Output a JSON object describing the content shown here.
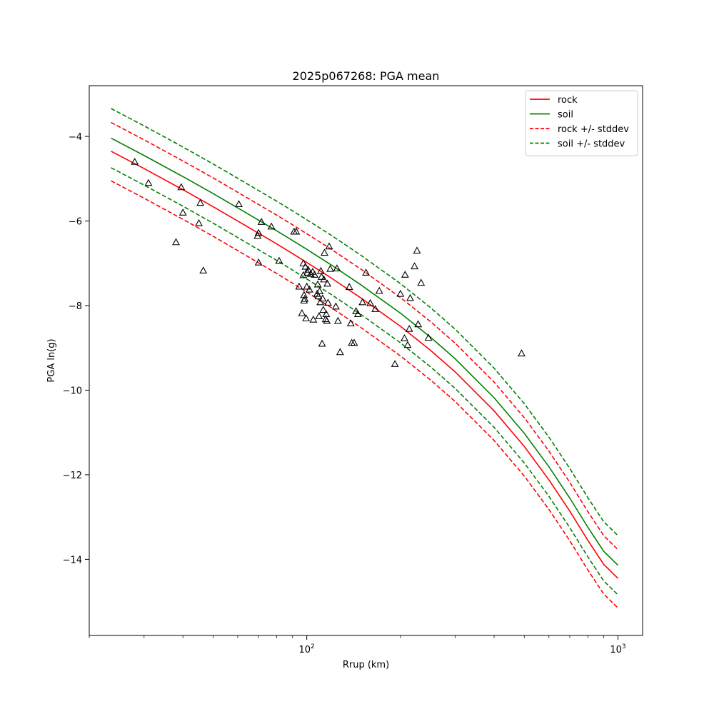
{
  "chart_data": {
    "type": "line",
    "title": "2025p067268: PGA mean",
    "xlabel": "Rrup (km)",
    "ylabel": "PGA ln(g)",
    "xscale": "log",
    "xlim": [
      20,
      1200
    ],
    "ylim": [
      -15.8,
      -2.8
    ],
    "x_ticks": [
      {
        "value": 100,
        "base": "10",
        "exp": "2"
      },
      {
        "value": 1000,
        "base": "10",
        "exp": "3"
      }
    ],
    "y_ticks": [
      -4,
      -6,
      -8,
      -10,
      -12,
      -14
    ],
    "y_tick_labels": [
      "−4",
      "−6",
      "−8",
      "−10",
      "−12",
      "−14"
    ],
    "legend_position": "top-right",
    "x": [
      23.5,
      30,
      40,
      50,
      60,
      70,
      80,
      90,
      100,
      120,
      150,
      200,
      250,
      300,
      400,
      500,
      600,
      700,
      800,
      900,
      1000
    ],
    "series": [
      {
        "name": "rock",
        "color": "#ff0000",
        "style": "solid",
        "values": [
          -4.35,
          -4.76,
          -5.26,
          -5.66,
          -6.0,
          -6.29,
          -6.54,
          -6.77,
          -6.98,
          -7.35,
          -7.83,
          -8.49,
          -9.06,
          -9.57,
          -10.49,
          -11.33,
          -12.12,
          -12.86,
          -13.55,
          -14.12,
          -14.45
        ]
      },
      {
        "name": "soil",
        "color": "#008000",
        "style": "solid",
        "values": [
          -4.04,
          -4.45,
          -4.95,
          -5.35,
          -5.69,
          -5.98,
          -6.23,
          -6.46,
          -6.67,
          -7.04,
          -7.52,
          -8.18,
          -8.75,
          -9.26,
          -10.18,
          -11.02,
          -11.81,
          -12.55,
          -13.24,
          -13.81,
          -14.14
        ]
      },
      {
        "name": "rock +/- stddev",
        "color": "#ff0000",
        "style": "dashed",
        "values": [
          -3.67,
          -4.08,
          -4.58,
          -4.98,
          -5.32,
          -5.61,
          -5.86,
          -6.09,
          -6.3,
          -6.67,
          -7.15,
          -7.81,
          -8.38,
          -8.89,
          -9.81,
          -10.65,
          -11.44,
          -12.18,
          -12.87,
          -13.44,
          -13.77
        ]
      },
      {
        "name": "",
        "color": "#ff0000",
        "style": "dashed",
        "values": [
          -5.05,
          -5.46,
          -5.96,
          -6.36,
          -6.7,
          -6.99,
          -7.24,
          -7.47,
          -7.68,
          -8.05,
          -8.53,
          -9.19,
          -9.76,
          -10.27,
          -11.19,
          -12.03,
          -12.82,
          -13.56,
          -14.25,
          -14.82,
          -15.15
        ]
      },
      {
        "name": "soil +/- stddev",
        "color": "#008000",
        "style": "dashed",
        "values": [
          -3.34,
          -3.75,
          -4.25,
          -4.65,
          -4.99,
          -5.28,
          -5.53,
          -5.76,
          -5.97,
          -6.34,
          -6.82,
          -7.48,
          -8.05,
          -8.56,
          -9.48,
          -10.32,
          -11.11,
          -11.85,
          -12.54,
          -13.11,
          -13.44
        ]
      },
      {
        "name": "",
        "color": "#008000",
        "style": "dashed",
        "values": [
          -4.74,
          -5.15,
          -5.65,
          -6.05,
          -6.39,
          -6.68,
          -6.93,
          -7.16,
          -7.37,
          -7.74,
          -8.22,
          -8.88,
          -9.45,
          -9.96,
          -10.88,
          -11.72,
          -12.51,
          -13.25,
          -13.94,
          -14.51,
          -14.84
        ]
      }
    ],
    "observations": {
      "marker": "triangle",
      "color": "#000000",
      "points": [
        [
          28.0,
          -4.6
        ],
        [
          31.0,
          -5.1
        ],
        [
          38.0,
          -6.5
        ],
        [
          39.5,
          -5.2
        ],
        [
          40.0,
          -5.8
        ],
        [
          45.0,
          -6.05
        ],
        [
          45.5,
          -5.57
        ],
        [
          46.5,
          -7.17
        ],
        [
          60.5,
          -5.6
        ],
        [
          69.5,
          -6.35
        ],
        [
          70.0,
          -6.28
        ],
        [
          70.0,
          -6.98
        ],
        [
          71.5,
          -6.02
        ],
        [
          77.0,
          -6.13
        ],
        [
          81.5,
          -6.94
        ],
        [
          91.0,
          -6.25
        ],
        [
          92.5,
          -6.25
        ],
        [
          94.5,
          -7.55
        ],
        [
          96.5,
          -8.18
        ],
        [
          97.5,
          -7.0
        ],
        [
          97.5,
          -7.28
        ],
        [
          98.0,
          -7.75
        ],
        [
          98.0,
          -7.88
        ],
        [
          98.5,
          -7.84
        ],
        [
          99.0,
          -7.08
        ],
        [
          99.5,
          -8.3
        ],
        [
          100.0,
          -7.55
        ],
        [
          100.5,
          -7.22
        ],
        [
          101.0,
          -7.15
        ],
        [
          102.0,
          -7.62
        ],
        [
          103.0,
          -7.25
        ],
        [
          104.5,
          -7.2
        ],
        [
          105.0,
          -8.33
        ],
        [
          106.0,
          -7.27
        ],
        [
          108.0,
          -7.72
        ],
        [
          108.5,
          -7.5
        ],
        [
          109.0,
          -7.78
        ],
        [
          109.5,
          -8.25
        ],
        [
          110.0,
          -7.66
        ],
        [
          110.5,
          -7.92
        ],
        [
          111.0,
          -7.18
        ],
        [
          111.5,
          -7.32
        ],
        [
          112.0,
          -8.9
        ],
        [
          112.5,
          -7.83
        ],
        [
          113.0,
          -8.1
        ],
        [
          113.5,
          -7.38
        ],
        [
          114.0,
          -6.75
        ],
        [
          115.0,
          -8.32
        ],
        [
          115.5,
          -8.2
        ],
        [
          116.0,
          -8.36
        ],
        [
          116.5,
          -7.48
        ],
        [
          117.0,
          -7.93
        ],
        [
          118.0,
          -6.6
        ],
        [
          119.0,
          -7.13
        ],
        [
          124.0,
          -8.02
        ],
        [
          125.0,
          -7.12
        ],
        [
          126.0,
          -8.36
        ],
        [
          128.0,
          -9.1
        ],
        [
          137.0,
          -7.56
        ],
        [
          138.5,
          -8.42
        ],
        [
          139.5,
          -8.88
        ],
        [
          142.0,
          -8.88
        ],
        [
          144.0,
          -8.13
        ],
        [
          146.0,
          -8.2
        ],
        [
          151.0,
          -7.92
        ],
        [
          155.0,
          -7.22
        ],
        [
          160.0,
          -7.94
        ],
        [
          166.0,
          -8.08
        ],
        [
          171.0,
          -7.65
        ],
        [
          192.0,
          -9.38
        ],
        [
          200.0,
          -7.72
        ],
        [
          206.0,
          -8.77
        ],
        [
          207.0,
          -7.27
        ],
        [
          211.0,
          -8.93
        ],
        [
          213.5,
          -8.55
        ],
        [
          215.0,
          -7.82
        ],
        [
          222.0,
          -7.07
        ],
        [
          226.0,
          -6.7
        ],
        [
          228.0,
          -8.44
        ],
        [
          233.0,
          -7.46
        ],
        [
          246.0,
          -8.76
        ],
        [
          490.0,
          -9.13
        ]
      ]
    }
  }
}
